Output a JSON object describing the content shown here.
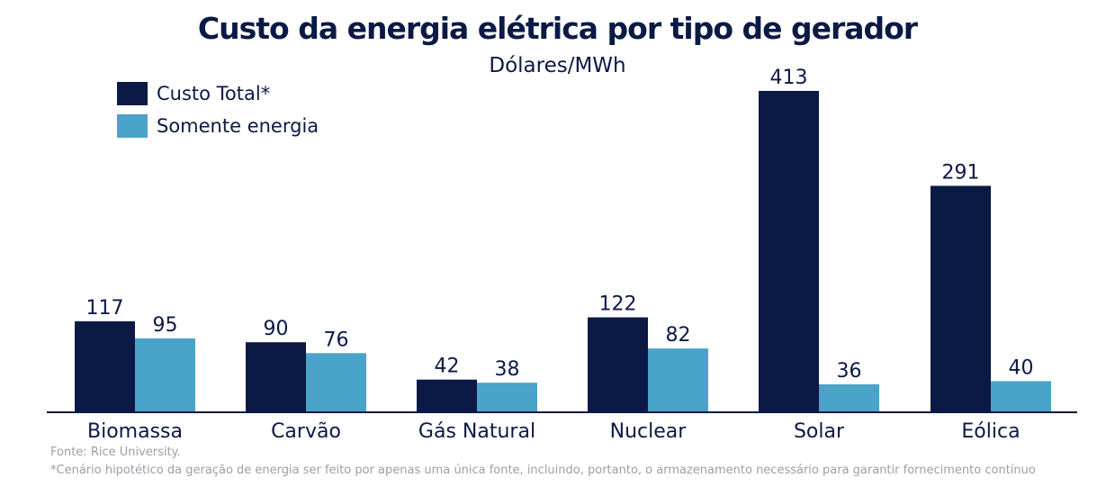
{
  "chart_data": {
    "type": "bar",
    "title": "Custo da energia elétrica por tipo de gerador",
    "subtitle": "Dólares/MWh",
    "categories": [
      "Biomassa",
      "Carvão",
      "Gás Natural",
      "Nuclear",
      "Solar",
      "Eólica"
    ],
    "series": [
      {
        "name": "Custo Total*",
        "values": [
          117,
          90,
          42,
          122,
          413,
          291
        ],
        "color": "#0b1a45"
      },
      {
        "name": "Somente energia",
        "values": [
          95,
          76,
          38,
          82,
          36,
          40
        ],
        "color": "#4aa3c8"
      }
    ],
    "ylim": [
      0,
      413
    ],
    "grid": false,
    "legend_position": "top-left"
  },
  "footer": {
    "source": "Fonte: Rice University.",
    "note": "*Cenário hipotético da geração de energia ser feito por apenas uma única fonte, incluindo, portanto, o armazenamento necessário para garantir fornecimento contínuo"
  }
}
